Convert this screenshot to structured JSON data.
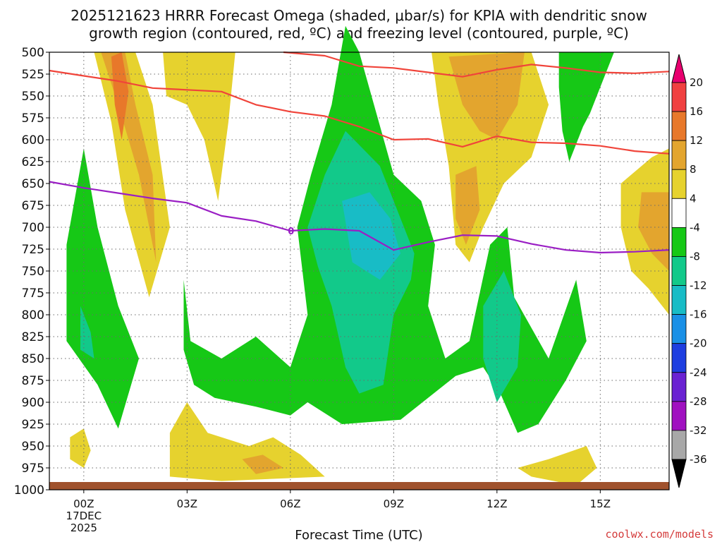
{
  "chart_data": {
    "type": "contour",
    "title_line1": "2025121623 HRRR Forecast Omega (shaded, μbar/s) for KPIA with dendritic snow",
    "title_line2": "growth region (contoured, red, ºC) and freezing level (contoured, purple, ºC)",
    "xlabel": "Forecast Time (UTC)",
    "ylabel": "",
    "x_unit": "hours after 00Z 17DEC2025",
    "xlim": [
      -1,
      17
    ],
    "ylim": [
      1000,
      500
    ],
    "x_ticks": [
      {
        "hour": 0,
        "label": "00Z",
        "sub1": "17DEC",
        "sub2": "2025"
      },
      {
        "hour": 3,
        "label": "03Z"
      },
      {
        "hour": 6,
        "label": "06Z"
      },
      {
        "hour": 9,
        "label": "09Z"
      },
      {
        "hour": 12,
        "label": "12Z"
      },
      {
        "hour": 15,
        "label": "15Z"
      }
    ],
    "pressure_ticks": [
      "500",
      "525",
      "550",
      "575",
      "600",
      "625",
      "650",
      "675",
      "700",
      "725",
      "750",
      "775",
      "800",
      "825",
      "850",
      "875",
      "900",
      "925",
      "950",
      "975",
      "1000"
    ],
    "colorbar": {
      "labels": [
        "20",
        "16",
        "12",
        "8",
        "4",
        "-4",
        "-8",
        "-12",
        "-16",
        "-20",
        "-24",
        "-28",
        "-32",
        "-36"
      ],
      "bins": [
        {
          "lo": 20,
          "hi": 24,
          "color": "#e8006f"
        },
        {
          "lo": 16,
          "hi": 20,
          "color": "#f04040"
        },
        {
          "lo": 12,
          "hi": 16,
          "color": "#e8782a"
        },
        {
          "lo": 8,
          "hi": 12,
          "color": "#e3a52e"
        },
        {
          "lo": 4,
          "hi": 8,
          "color": "#e6d22e"
        },
        {
          "lo": -4,
          "hi": 4,
          "color": "#ffffff"
        },
        {
          "lo": -8,
          "hi": -4,
          "color": "#16c816"
        },
        {
          "lo": -12,
          "hi": -8,
          "color": "#12c98a"
        },
        {
          "lo": -16,
          "hi": -12,
          "color": "#18bcc6"
        },
        {
          "lo": -20,
          "hi": -16,
          "color": "#1a90e6"
        },
        {
          "lo": -24,
          "hi": -20,
          "color": "#1e3ee0"
        },
        {
          "lo": -28,
          "hi": -24,
          "color": "#6a22d2"
        },
        {
          "lo": -32,
          "hi": -28,
          "color": "#a011c0"
        },
        {
          "lo": -36,
          "hi": -32,
          "color": "#a8a8a8"
        }
      ],
      "under_color": "#000000",
      "over_color": "#e8006f"
    },
    "contour_lines": [
      {
        "name": "dendritic growth region upper (-17 C)",
        "color": "#f0443a",
        "points": [
          [
            -1,
            521
          ],
          [
            0,
            527
          ],
          [
            1,
            533
          ],
          [
            2,
            541
          ],
          [
            3,
            543
          ],
          [
            4,
            545
          ],
          [
            5,
            560
          ],
          [
            6,
            568
          ],
          [
            7,
            573
          ],
          [
            8,
            585
          ],
          [
            9,
            600
          ],
          [
            10,
            599
          ],
          [
            11,
            608
          ],
          [
            12,
            596
          ],
          [
            13,
            603
          ],
          [
            14,
            604
          ],
          [
            15,
            607
          ],
          [
            16,
            613
          ],
          [
            17,
            616
          ]
        ]
      },
      {
        "name": "dendritic growth region lower (-12 C)",
        "color": "#f0443a",
        "points": [
          [
            5.8,
            500
          ],
          [
            7,
            504
          ],
          [
            8,
            516
          ],
          [
            9,
            518
          ],
          [
            10,
            523
          ],
          [
            11,
            528
          ],
          [
            12,
            520
          ],
          [
            13,
            514
          ],
          [
            14,
            518
          ],
          [
            15,
            523
          ],
          [
            16,
            524
          ],
          [
            17,
            522
          ]
        ]
      },
      {
        "name": "freezing level (0 C)",
        "color": "#9a1ec4",
        "points": [
          [
            -1,
            648
          ],
          [
            0,
            655
          ],
          [
            1,
            661
          ],
          [
            2,
            667
          ],
          [
            3,
            672
          ],
          [
            4,
            687
          ],
          [
            5,
            693
          ],
          [
            6,
            704
          ],
          [
            7,
            702
          ],
          [
            8,
            704
          ],
          [
            9,
            726
          ],
          [
            10,
            717
          ],
          [
            11,
            709
          ],
          [
            12,
            710
          ],
          [
            13,
            719
          ],
          [
            14,
            726
          ],
          [
            15,
            729
          ],
          [
            16,
            728
          ],
          [
            17,
            726
          ]
        ]
      }
    ],
    "freezing_level_label": "0",
    "ground_color": "#a0522d",
    "omega_regions": [
      {
        "value": 4,
        "color": "#e6d22e",
        "points": [
          [
            0.3,
            500
          ],
          [
            1.5,
            500
          ],
          [
            2.0,
            560
          ],
          [
            2.5,
            700
          ],
          [
            1.9,
            780
          ],
          [
            1.2,
            680
          ],
          [
            0.8,
            580
          ]
        ]
      },
      {
        "value": 4,
        "color": "#e6d22e",
        "points": [
          [
            2.3,
            500
          ],
          [
            4.4,
            500
          ],
          [
            4.2,
            580
          ],
          [
            3.9,
            670
          ],
          [
            3.5,
            600
          ],
          [
            3.0,
            560
          ],
          [
            2.4,
            550
          ]
        ]
      },
      {
        "value": 8,
        "color": "#e3a52e",
        "points": [
          [
            0.5,
            500
          ],
          [
            1.2,
            500
          ],
          [
            1.5,
            560
          ],
          [
            2.0,
            640
          ],
          [
            2.1,
            740
          ],
          [
            1.6,
            640
          ],
          [
            1.0,
            560
          ]
        ]
      },
      {
        "value": 12,
        "color": "#e8782a",
        "points": [
          [
            0.8,
            505
          ],
          [
            1.1,
            500
          ],
          [
            1.3,
            545
          ],
          [
            1.1,
            600
          ],
          [
            0.9,
            560
          ]
        ]
      },
      {
        "value": 4,
        "color": "#e6d22e",
        "points": [
          [
            10.1,
            500
          ],
          [
            13.0,
            500
          ],
          [
            13.5,
            560
          ],
          [
            13.0,
            620
          ],
          [
            12.2,
            650
          ],
          [
            11.6,
            700
          ],
          [
            11.2,
            740
          ],
          [
            10.8,
            720
          ],
          [
            10.6,
            630
          ],
          [
            10.3,
            560
          ]
        ]
      },
      {
        "value": 8,
        "color": "#e3a52e",
        "points": [
          [
            10.6,
            505
          ],
          [
            12.8,
            500
          ],
          [
            12.6,
            560
          ],
          [
            12.0,
            600
          ],
          [
            11.5,
            590
          ],
          [
            11.0,
            560
          ]
        ]
      },
      {
        "value": 8,
        "color": "#e3a52e",
        "points": [
          [
            10.8,
            640
          ],
          [
            11.4,
            630
          ],
          [
            11.5,
            680
          ],
          [
            11.1,
            720
          ],
          [
            10.8,
            690
          ]
        ]
      },
      {
        "value": 4,
        "color": "#e6d22e",
        "points": [
          [
            15.6,
            650
          ],
          [
            16.5,
            620
          ],
          [
            17,
            610
          ],
          [
            17,
            800
          ],
          [
            16.4,
            770
          ],
          [
            15.9,
            750
          ],
          [
            15.6,
            700
          ]
        ]
      },
      {
        "value": 8,
        "color": "#e3a52e",
        "points": [
          [
            16.2,
            660
          ],
          [
            17,
            660
          ],
          [
            17,
            750
          ],
          [
            16.5,
            730
          ],
          [
            16.1,
            700
          ]
        ]
      },
      {
        "value": -4,
        "color": "#16c816",
        "points": [
          [
            -0.5,
            720
          ],
          [
            0,
            610
          ],
          [
            0.4,
            700
          ],
          [
            1.0,
            790
          ],
          [
            1.6,
            850
          ],
          [
            1.0,
            930
          ],
          [
            0.4,
            880
          ],
          [
            -0.5,
            830
          ]
        ]
      },
      {
        "value": -8,
        "color": "#12c98a",
        "points": [
          [
            -0.1,
            790
          ],
          [
            0.2,
            820
          ],
          [
            0.3,
            850
          ],
          [
            -0.1,
            840
          ]
        ]
      },
      {
        "value": -4,
        "color": "#16c816",
        "points": [
          [
            2.9,
            760
          ],
          [
            3.1,
            830
          ],
          [
            4.0,
            850
          ],
          [
            5.0,
            825
          ],
          [
            6.0,
            860
          ],
          [
            6.5,
            800
          ],
          [
            6.2,
            700
          ],
          [
            6.6,
            640
          ],
          [
            7.2,
            560
          ],
          [
            7.6,
            470
          ],
          [
            8.0,
            500
          ],
          [
            9.0,
            640
          ],
          [
            9.8,
            670
          ],
          [
            10.2,
            720
          ],
          [
            10.0,
            790
          ],
          [
            10.5,
            850
          ],
          [
            11.2,
            830
          ],
          [
            11.8,
            720
          ],
          [
            12.3,
            700
          ],
          [
            12.5,
            780
          ],
          [
            13.5,
            850
          ],
          [
            14.3,
            760
          ],
          [
            14.6,
            830
          ],
          [
            14.0,
            875
          ],
          [
            13.2,
            925
          ],
          [
            12.6,
            935
          ],
          [
            12.1,
            890
          ],
          [
            11.6,
            860
          ],
          [
            10.8,
            870
          ],
          [
            9.2,
            920
          ],
          [
            7.5,
            925
          ],
          [
            6.5,
            900
          ],
          [
            6.0,
            915
          ],
          [
            5.0,
            905
          ],
          [
            3.8,
            895
          ],
          [
            3.2,
            880
          ],
          [
            2.9,
            840
          ]
        ]
      },
      {
        "value": -8,
        "color": "#12c98a",
        "points": [
          [
            6.5,
            700
          ],
          [
            7.0,
            640
          ],
          [
            7.6,
            590
          ],
          [
            8.6,
            630
          ],
          [
            9.2,
            690
          ],
          [
            9.6,
            730
          ],
          [
            9.5,
            760
          ],
          [
            9.0,
            800
          ],
          [
            8.7,
            880
          ],
          [
            8.0,
            890
          ],
          [
            7.6,
            860
          ],
          [
            7.2,
            790
          ],
          [
            6.8,
            745
          ]
        ]
      },
      {
        "value": -16,
        "color": "#18bcc6",
        "points": [
          [
            7.5,
            670
          ],
          [
            8.3,
            660
          ],
          [
            8.9,
            690
          ],
          [
            9.2,
            730
          ],
          [
            8.6,
            760
          ],
          [
            7.8,
            740
          ]
        ]
      },
      {
        "value": -8,
        "color": "#12c98a",
        "points": [
          [
            11.6,
            790
          ],
          [
            12.2,
            750
          ],
          [
            12.7,
            800
          ],
          [
            12.6,
            860
          ],
          [
            12.0,
            900
          ],
          [
            11.6,
            850
          ]
        ]
      },
      {
        "value": -4,
        "color": "#16c816",
        "points": [
          [
            13.8,
            500
          ],
          [
            15.4,
            500
          ],
          [
            15.0,
            540
          ],
          [
            14.7,
            570
          ],
          [
            14.5,
            585
          ],
          [
            14.1,
            625
          ],
          [
            13.9,
            590
          ],
          [
            13.8,
            540
          ]
        ]
      },
      {
        "value": 4,
        "color": "#e6d22e",
        "points": [
          [
            -0.4,
            940
          ],
          [
            0,
            930
          ],
          [
            0.2,
            955
          ],
          [
            0,
            975
          ],
          [
            -0.4,
            965
          ]
        ]
      },
      {
        "value": 4,
        "color": "#e6d22e",
        "points": [
          [
            2.5,
            935
          ],
          [
            3.0,
            900
          ],
          [
            3.6,
            935
          ],
          [
            4.8,
            950
          ],
          [
            5.5,
            940
          ],
          [
            6.3,
            960
          ],
          [
            7.0,
            985
          ],
          [
            4.0,
            990
          ],
          [
            2.5,
            985
          ]
        ]
      },
      {
        "value": 8,
        "color": "#e3a52e",
        "points": [
          [
            4.6,
            965
          ],
          [
            5.2,
            960
          ],
          [
            5.8,
            975
          ],
          [
            5.0,
            982
          ]
        ]
      },
      {
        "value": 4,
        "color": "#e6d22e",
        "points": [
          [
            12.6,
            975
          ],
          [
            13.5,
            965
          ],
          [
            14.6,
            950
          ],
          [
            14.9,
            975
          ],
          [
            14.3,
            995
          ],
          [
            13.0,
            985
          ]
        ]
      }
    ]
  },
  "credit": "coolwx.com/models"
}
